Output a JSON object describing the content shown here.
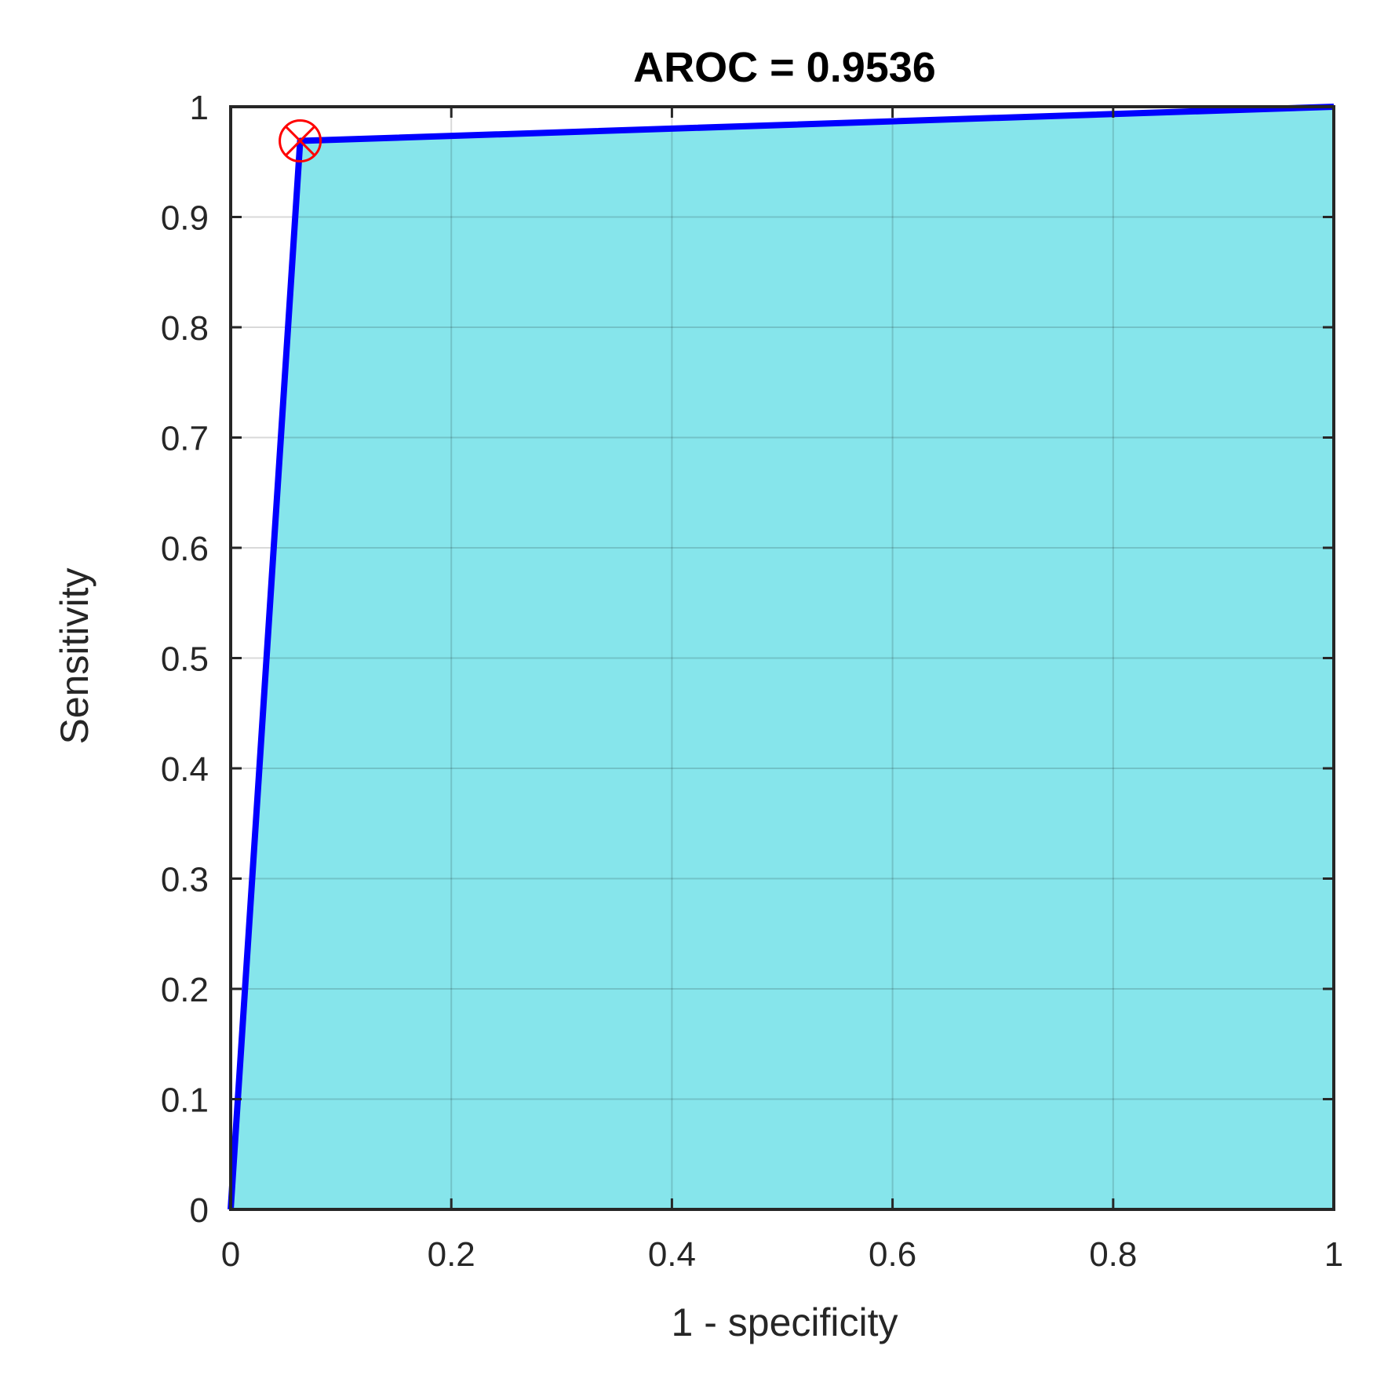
{
  "chart_data": {
    "type": "area",
    "title": "AROC = 0.9536",
    "xlabel": "1 - specificity",
    "ylabel": "Sensitivity",
    "xlim": [
      0,
      1
    ],
    "ylim": [
      0,
      1
    ],
    "grid": true,
    "x_ticks": [
      "0",
      "0.2",
      "0.4",
      "0.6",
      "0.8",
      "1"
    ],
    "y_ticks": [
      "0",
      "0.1",
      "0.2",
      "0.3",
      "0.4",
      "0.5",
      "0.6",
      "0.7",
      "0.8",
      "0.9",
      "1"
    ],
    "series": [
      {
        "x": [
          0,
          0.063,
          1
        ],
        "y": [
          0,
          0.969,
          1
        ]
      }
    ],
    "marker": {
      "x": 0.063,
      "y": 0.969,
      "shape": "circle-x"
    },
    "colors": {
      "line": "#0000ff",
      "fill": "#86e5eb",
      "marker": "#ff0000"
    }
  }
}
